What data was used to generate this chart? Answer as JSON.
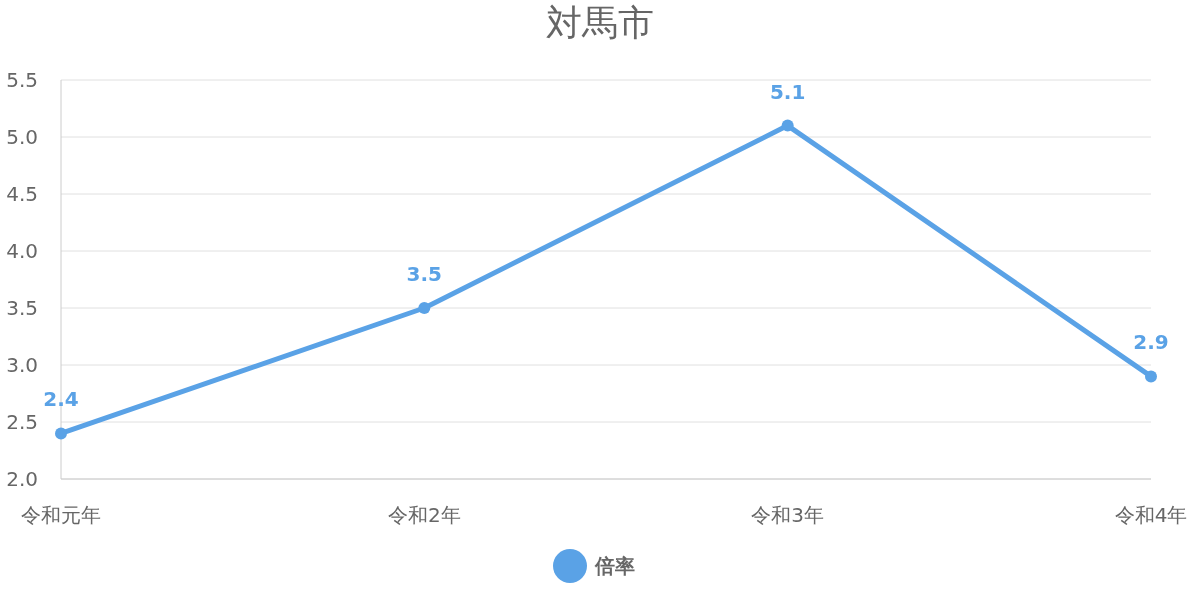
{
  "chart_data": {
    "type": "line",
    "title": "対馬市",
    "categories": [
      "令和元年",
      "令和2年",
      "令和3年",
      "令和4年"
    ],
    "series": [
      {
        "name": "倍率",
        "color": "#5aa2e6",
        "values": [
          2.4,
          3.5,
          5.1,
          2.9
        ]
      }
    ],
    "ylim": [
      2.0,
      5.5
    ],
    "yticks": [
      {
        "value": 2,
        "label": "2.0"
      },
      {
        "value": 2.5,
        "label": "2.5"
      },
      {
        "value": 3,
        "label": "3.0"
      },
      {
        "value": 3.5,
        "label": "3.5"
      },
      {
        "value": 4,
        "label": "4.0"
      },
      {
        "value": 4.5,
        "label": "4.5"
      },
      {
        "value": 5,
        "label": "5.0"
      },
      {
        "value": 5.5,
        "label": "5.5"
      }
    ],
    "grid": "y",
    "legend": "bottom",
    "data_labels": true,
    "marker": "circle",
    "line_style": "solid"
  }
}
